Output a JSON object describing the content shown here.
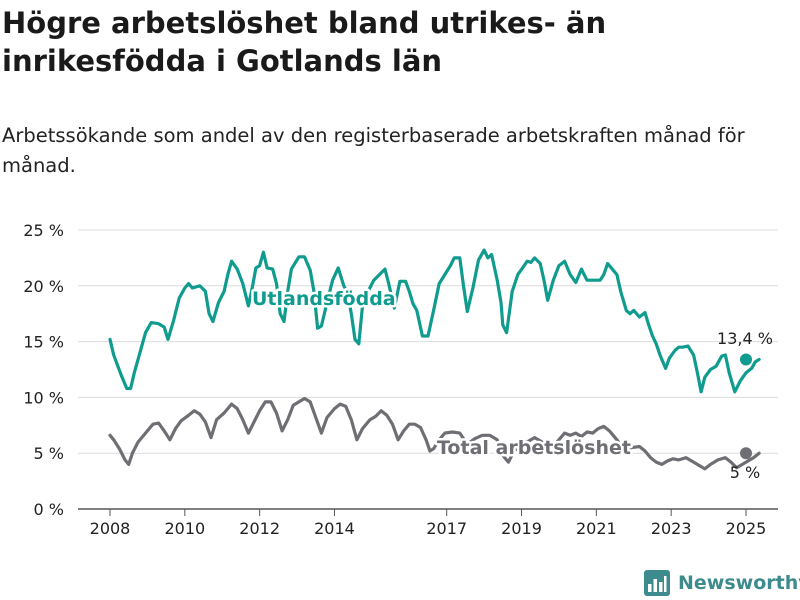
{
  "title": "Högre arbetslöshet bland utrikes- än inrikesfödda i Gotlands län",
  "subtitle": "Arbetssökande som andel av den registerbaserade arbetskraften månad för månad.",
  "brand": {
    "name": "Newsworthy"
  },
  "chart_data": {
    "type": "line",
    "ylim": [
      0,
      25
    ],
    "xlim": [
      2008,
      2025
    ],
    "y_ticks": [
      0,
      5,
      10,
      15,
      20,
      25
    ],
    "y_tick_labels": [
      "0 %",
      "5 %",
      "10 %",
      "15 %",
      "20 %",
      "25 %"
    ],
    "x_ticks": [
      2008,
      2010,
      2012,
      2014,
      2017,
      2019,
      2021,
      2023,
      2025
    ],
    "x_tick_labels": [
      "2008",
      "2010",
      "2012",
      "2014",
      "2017",
      "2019",
      "2021",
      "2023",
      "2025"
    ],
    "grid": "horizontal",
    "series": [
      {
        "name": "Utlandsfödda",
        "color": "#0f9c8f",
        "end_label": "13,4 %",
        "points": [
          [
            2008.0,
            15.2
          ],
          [
            2008.1,
            13.8
          ],
          [
            2008.3,
            12.0
          ],
          [
            2008.45,
            10.8
          ],
          [
            2008.55,
            10.8
          ],
          [
            2008.65,
            12.2
          ],
          [
            2008.8,
            14.0
          ],
          [
            2008.95,
            15.8
          ],
          [
            2009.1,
            16.7
          ],
          [
            2009.3,
            16.6
          ],
          [
            2009.45,
            16.3
          ],
          [
            2009.55,
            15.2
          ],
          [
            2009.7,
            16.9
          ],
          [
            2009.85,
            18.9
          ],
          [
            2010.0,
            19.8
          ],
          [
            2010.1,
            20.2
          ],
          [
            2010.2,
            19.8
          ],
          [
            2010.4,
            20.0
          ],
          [
            2010.55,
            19.5
          ],
          [
            2010.65,
            17.5
          ],
          [
            2010.75,
            16.8
          ],
          [
            2010.9,
            18.5
          ],
          [
            2011.05,
            19.5
          ],
          [
            2011.15,
            21.0
          ],
          [
            2011.25,
            22.2
          ],
          [
            2011.4,
            21.5
          ],
          [
            2011.55,
            20.2
          ],
          [
            2011.7,
            18.2
          ],
          [
            2011.8,
            19.8
          ],
          [
            2011.9,
            21.6
          ],
          [
            2012.0,
            21.8
          ],
          [
            2012.1,
            23.0
          ],
          [
            2012.2,
            21.6
          ],
          [
            2012.35,
            21.5
          ],
          [
            2012.45,
            20.2
          ],
          [
            2012.55,
            17.5
          ],
          [
            2012.65,
            16.8
          ],
          [
            2012.75,
            19.5
          ],
          [
            2012.85,
            21.5
          ],
          [
            2013.05,
            22.6
          ],
          [
            2013.2,
            22.6
          ],
          [
            2013.35,
            21.4
          ],
          [
            2013.45,
            19.5
          ],
          [
            2013.55,
            16.2
          ],
          [
            2013.65,
            16.4
          ],
          [
            2013.8,
            18.5
          ],
          [
            2013.95,
            20.5
          ],
          [
            2014.1,
            21.6
          ],
          [
            2014.25,
            20.0
          ],
          [
            2014.35,
            19.3
          ],
          [
            2014.45,
            17.5
          ],
          [
            2014.55,
            15.2
          ],
          [
            2014.65,
            14.8
          ],
          [
            2014.75,
            18.2
          ],
          [
            2014.9,
            19.5
          ],
          [
            2015.05,
            20.5
          ],
          [
            2015.2,
            21.0
          ],
          [
            2015.35,
            21.5
          ],
          [
            2015.45,
            20.2
          ],
          [
            2015.6,
            18.0
          ],
          [
            2015.75,
            20.4
          ],
          [
            2015.9,
            20.4
          ],
          [
            2016.0,
            19.5
          ],
          [
            2016.1,
            18.4
          ],
          [
            2016.2,
            17.8
          ],
          [
            2016.35,
            15.5
          ],
          [
            2016.5,
            15.5
          ],
          [
            2016.65,
            17.8
          ],
          [
            2016.8,
            20.2
          ],
          [
            2016.95,
            21.0
          ],
          [
            2017.1,
            21.8
          ],
          [
            2017.2,
            22.5
          ],
          [
            2017.35,
            22.5
          ],
          [
            2017.45,
            20.0
          ],
          [
            2017.55,
            17.7
          ],
          [
            2017.7,
            19.8
          ],
          [
            2017.85,
            22.3
          ],
          [
            2018.0,
            23.2
          ],
          [
            2018.1,
            22.5
          ],
          [
            2018.2,
            22.8
          ],
          [
            2018.35,
            20.5
          ],
          [
            2018.45,
            18.5
          ],
          [
            2018.5,
            16.5
          ],
          [
            2018.6,
            15.8
          ],
          [
            2018.75,
            19.5
          ],
          [
            2018.9,
            21.0
          ],
          [
            2019.05,
            21.7
          ],
          [
            2019.15,
            22.2
          ],
          [
            2019.25,
            22.1
          ],
          [
            2019.35,
            22.5
          ],
          [
            2019.5,
            22.0
          ],
          [
            2019.6,
            20.5
          ],
          [
            2019.7,
            18.7
          ],
          [
            2019.85,
            20.5
          ],
          [
            2020.0,
            21.8
          ],
          [
            2020.15,
            22.2
          ],
          [
            2020.3,
            21.0
          ],
          [
            2020.45,
            20.3
          ],
          [
            2020.6,
            21.5
          ],
          [
            2020.75,
            20.5
          ],
          [
            2020.9,
            20.5
          ],
          [
            2021.1,
            20.5
          ],
          [
            2021.2,
            21.0
          ],
          [
            2021.3,
            22.0
          ],
          [
            2021.45,
            21.4
          ],
          [
            2021.55,
            21.0
          ],
          [
            2021.65,
            19.5
          ],
          [
            2021.8,
            17.8
          ],
          [
            2021.9,
            17.5
          ],
          [
            2022.0,
            17.8
          ],
          [
            2022.15,
            17.2
          ],
          [
            2022.3,
            17.6
          ],
          [
            2022.4,
            16.5
          ],
          [
            2022.5,
            15.5
          ],
          [
            2022.6,
            14.8
          ],
          [
            2022.7,
            13.8
          ],
          [
            2022.85,
            12.6
          ],
          [
            2022.95,
            13.5
          ],
          [
            2023.1,
            14.2
          ],
          [
            2023.2,
            14.5
          ],
          [
            2023.3,
            14.5
          ],
          [
            2023.45,
            14.6
          ],
          [
            2023.6,
            13.8
          ],
          [
            2023.7,
            12.2
          ],
          [
            2023.8,
            10.5
          ],
          [
            2023.9,
            11.8
          ],
          [
            2024.05,
            12.5
          ],
          [
            2024.2,
            12.8
          ],
          [
            2024.35,
            13.7
          ],
          [
            2024.45,
            13.8
          ],
          [
            2024.55,
            12.2
          ],
          [
            2024.7,
            10.5
          ],
          [
            2024.85,
            11.5
          ],
          [
            2025.0,
            12.2
          ],
          [
            2025.15,
            12.6
          ],
          [
            2025.25,
            13.2
          ],
          [
            2025.35,
            13.4
          ]
        ]
      },
      {
        "name": "Total arbetslöshet",
        "color": "#6e6e74",
        "end_label": "5 %",
        "points": [
          [
            2008.0,
            6.6
          ],
          [
            2008.1,
            6.2
          ],
          [
            2008.25,
            5.4
          ],
          [
            2008.4,
            4.4
          ],
          [
            2008.5,
            4.0
          ],
          [
            2008.6,
            5.0
          ],
          [
            2008.75,
            6.0
          ],
          [
            2008.95,
            6.8
          ],
          [
            2009.15,
            7.6
          ],
          [
            2009.3,
            7.7
          ],
          [
            2009.45,
            7.0
          ],
          [
            2009.6,
            6.2
          ],
          [
            2009.75,
            7.2
          ],
          [
            2009.9,
            7.9
          ],
          [
            2010.1,
            8.4
          ],
          [
            2010.25,
            8.8
          ],
          [
            2010.4,
            8.5
          ],
          [
            2010.55,
            7.8
          ],
          [
            2010.7,
            6.4
          ],
          [
            2010.85,
            8.0
          ],
          [
            2011.05,
            8.6
          ],
          [
            2011.25,
            9.4
          ],
          [
            2011.4,
            9.0
          ],
          [
            2011.55,
            8.0
          ],
          [
            2011.7,
            6.8
          ],
          [
            2011.85,
            7.8
          ],
          [
            2012.0,
            8.8
          ],
          [
            2012.15,
            9.6
          ],
          [
            2012.3,
            9.6
          ],
          [
            2012.45,
            8.6
          ],
          [
            2012.6,
            7.0
          ],
          [
            2012.75,
            8.0
          ],
          [
            2012.9,
            9.3
          ],
          [
            2013.05,
            9.6
          ],
          [
            2013.2,
            9.9
          ],
          [
            2013.35,
            9.6
          ],
          [
            2013.5,
            8.2
          ],
          [
            2013.65,
            6.8
          ],
          [
            2013.8,
            8.2
          ],
          [
            2014.0,
            9.0
          ],
          [
            2014.15,
            9.4
          ],
          [
            2014.3,
            9.2
          ],
          [
            2014.45,
            8.0
          ],
          [
            2014.6,
            6.2
          ],
          [
            2014.75,
            7.2
          ],
          [
            2014.95,
            8.0
          ],
          [
            2015.1,
            8.3
          ],
          [
            2015.25,
            8.8
          ],
          [
            2015.4,
            8.4
          ],
          [
            2015.55,
            7.6
          ],
          [
            2015.7,
            6.2
          ],
          [
            2015.85,
            7.0
          ],
          [
            2016.0,
            7.6
          ],
          [
            2016.15,
            7.6
          ],
          [
            2016.3,
            7.3
          ],
          [
            2016.45,
            6.2
          ],
          [
            2016.55,
            5.2
          ],
          [
            2016.65,
            5.4
          ],
          [
            2016.8,
            6.2
          ],
          [
            2016.95,
            6.8
          ],
          [
            2017.15,
            6.9
          ],
          [
            2017.35,
            6.8
          ],
          [
            2017.55,
            5.8
          ],
          [
            2017.75,
            6.3
          ],
          [
            2017.95,
            6.6
          ],
          [
            2018.15,
            6.6
          ],
          [
            2018.35,
            6.2
          ],
          [
            2018.5,
            4.8
          ],
          [
            2018.65,
            4.2
          ],
          [
            2018.8,
            5.2
          ],
          [
            2018.95,
            5.6
          ],
          [
            2019.15,
            6.0
          ],
          [
            2019.35,
            6.4
          ],
          [
            2019.55,
            6.0
          ],
          [
            2019.7,
            5.2
          ],
          [
            2019.85,
            5.6
          ],
          [
            2020.0,
            6.2
          ],
          [
            2020.15,
            6.8
          ],
          [
            2020.3,
            6.6
          ],
          [
            2020.45,
            6.8
          ],
          [
            2020.6,
            6.5
          ],
          [
            2020.75,
            6.9
          ],
          [
            2020.9,
            6.8
          ],
          [
            2021.05,
            7.2
          ],
          [
            2021.2,
            7.4
          ],
          [
            2021.35,
            7.0
          ],
          [
            2021.55,
            6.2
          ],
          [
            2021.75,
            5.2
          ],
          [
            2021.95,
            5.5
          ],
          [
            2022.15,
            5.6
          ],
          [
            2022.3,
            5.2
          ],
          [
            2022.45,
            4.6
          ],
          [
            2022.6,
            4.2
          ],
          [
            2022.75,
            4.0
          ],
          [
            2022.9,
            4.3
          ],
          [
            2023.05,
            4.5
          ],
          [
            2023.2,
            4.4
          ],
          [
            2023.4,
            4.6
          ],
          [
            2023.6,
            4.2
          ],
          [
            2023.75,
            3.9
          ],
          [
            2023.9,
            3.6
          ],
          [
            2024.05,
            4.0
          ],
          [
            2024.25,
            4.4
          ],
          [
            2024.45,
            4.6
          ],
          [
            2024.6,
            4.2
          ],
          [
            2024.75,
            3.7
          ],
          [
            2024.9,
            4.0
          ],
          [
            2025.05,
            4.3
          ],
          [
            2025.2,
            4.6
          ],
          [
            2025.35,
            5.0
          ]
        ]
      }
    ]
  }
}
